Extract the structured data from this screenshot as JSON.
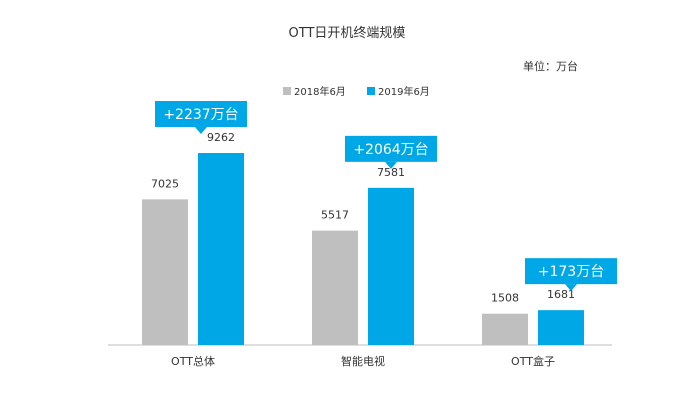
{
  "chart_data": {
    "type": "bar",
    "title": "OTT日开机终端规模",
    "unit_label": "单位：万台",
    "categories": [
      "OTT总体",
      "智能电视",
      "OTT盒子"
    ],
    "series": [
      {
        "name": "2018年6月",
        "color": "#bfbfbf",
        "values": [
          7025,
          5517,
          1508
        ]
      },
      {
        "name": "2019年6月",
        "color": "#00a7e6",
        "values": [
          9262,
          7581,
          1681
        ]
      }
    ],
    "callouts": [
      "+2237万台",
      "+2064万台",
      "+173万台"
    ],
    "callout_color": "#00a7e6",
    "legend_position": "top-left",
    "grid": false
  }
}
